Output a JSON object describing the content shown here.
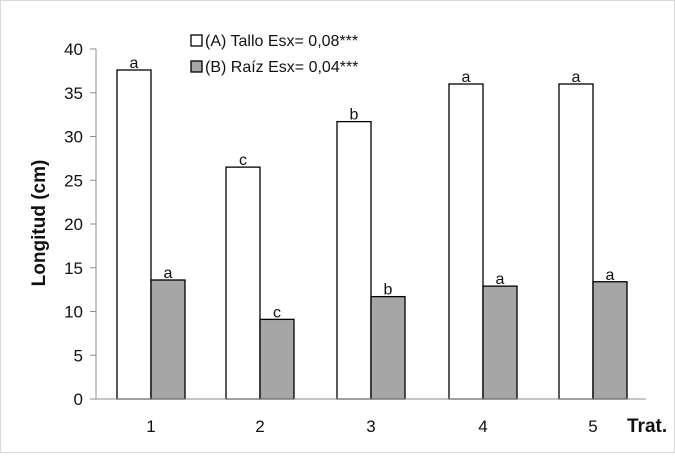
{
  "chart_data": {
    "type": "bar",
    "title": "",
    "xlabel": "Trat.",
    "ylabel": "Longitud (cm)",
    "ylim": [
      0,
      40
    ],
    "yticks": [
      0,
      5,
      10,
      15,
      20,
      25,
      30,
      35,
      40
    ],
    "categories": [
      "1",
      "2",
      "3",
      "4",
      "5"
    ],
    "legend_position": "top",
    "grid": false,
    "series": [
      {
        "name": "(A) Tallo Esx= 0,08***",
        "values": [
          37.6,
          26.5,
          31.7,
          36.0,
          36.0
        ],
        "labels": [
          "a",
          "c",
          "b",
          "a",
          "a"
        ],
        "color": "#ffffff"
      },
      {
        "name": "(B) Raíz Esx= 0,04***",
        "values": [
          13.6,
          9.1,
          11.7,
          12.9,
          13.4
        ],
        "labels": [
          "a",
          "c",
          "b",
          "a",
          "a"
        ],
        "color": "#a6a6a6"
      }
    ]
  }
}
